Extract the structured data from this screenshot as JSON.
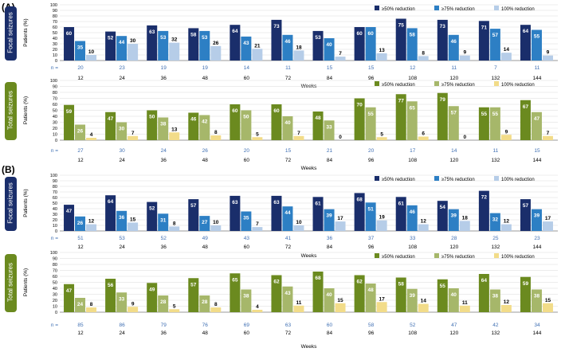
{
  "figure": {
    "panel_labels": [
      "(A)",
      "(B)"
    ],
    "y_axis_label": "Patients (%)",
    "x_axis_label": "Weeks",
    "n_prefix": "n ="
  },
  "colors": {
    "focal": [
      "#1a2e6b",
      "#2d7fc4",
      "#b6cde8"
    ],
    "total": [
      "#6b8a1f",
      "#a6b76a",
      "#f2dc89"
    ],
    "focal_label_bg": "#1a2e6b",
    "total_label_bg": "#6b8a1f",
    "n_text": "#3f6fb3",
    "grid": "#d9d9d9"
  },
  "chart_data": [
    {
      "type": "bar",
      "panel": "(A)",
      "title": "Focal seizures",
      "ylabel": "Patients (%)",
      "xlabel": "Weeks",
      "ylim": [
        0,
        100
      ],
      "yticks": [
        0,
        10,
        20,
        30,
        40,
        50,
        60,
        70,
        80,
        90,
        100
      ],
      "grid": true,
      "legend": "top-right",
      "categories": [
        "12",
        "24",
        "36",
        "48",
        "60",
        "72",
        "84",
        "96",
        "108",
        "120",
        "132",
        "144"
      ],
      "n": [
        "20",
        "23",
        "19",
        "19",
        "14",
        "11",
        "15",
        "15",
        "12",
        "11",
        "7",
        "11"
      ],
      "series": [
        {
          "name": "≥50% reduction",
          "values": [
            60,
            52,
            63,
            58,
            64,
            73,
            53,
            60,
            75,
            73,
            71,
            64
          ]
        },
        {
          "name": "≥75% reduction",
          "values": [
            35,
            44,
            53,
            53,
            43,
            46,
            40,
            60,
            58,
            46,
            57,
            55
          ]
        },
        {
          "name": "100% reduction",
          "values": [
            10,
            30,
            32,
            26,
            21,
            18,
            7,
            13,
            8,
            9,
            14,
            9
          ]
        }
      ]
    },
    {
      "type": "bar",
      "panel": "(A)",
      "title": "Total seizures",
      "ylabel": "Patients (%)",
      "xlabel": "Weeks",
      "ylim": [
        0,
        100
      ],
      "yticks": [
        0,
        10,
        20,
        30,
        40,
        50,
        60,
        70,
        80,
        90,
        100
      ],
      "grid": true,
      "legend": "top-right",
      "categories": [
        "12",
        "24",
        "36",
        "48",
        "60",
        "72",
        "84",
        "96",
        "108",
        "120",
        "132",
        "144"
      ],
      "n": [
        "27",
        "30",
        "24",
        "26",
        "20",
        "15",
        "21",
        "20",
        "17",
        "14",
        "11",
        "15"
      ],
      "series": [
        {
          "name": "≥50% reduction",
          "values": [
            59,
            47,
            50,
            46,
            60,
            60,
            48,
            70,
            77,
            79,
            55,
            67
          ]
        },
        {
          "name": "≥75% reduction",
          "values": [
            26,
            30,
            38,
            42,
            50,
            40,
            33,
            55,
            65,
            57,
            55,
            47
          ]
        },
        {
          "name": "100% reduction",
          "values": [
            4,
            7,
            13,
            8,
            5,
            7,
            0,
            5,
            6,
            0,
            9,
            7
          ]
        }
      ]
    },
    {
      "type": "bar",
      "panel": "(B)",
      "title": "Focal seizures",
      "ylabel": "Patients (%)",
      "xlabel": "Weeks",
      "ylim": [
        0,
        100
      ],
      "yticks": [
        0,
        10,
        20,
        30,
        40,
        50,
        60,
        70,
        80,
        90,
        100
      ],
      "grid": true,
      "legend": "top-right",
      "categories": [
        "12",
        "24",
        "36",
        "48",
        "60",
        "72",
        "84",
        "96",
        "108",
        "120",
        "132",
        "144"
      ],
      "n": [
        "51",
        "53",
        "52",
        "49",
        "43",
        "41",
        "36",
        "37",
        "33",
        "28",
        "25",
        "23"
      ],
      "series": [
        {
          "name": "≥50% reduction",
          "values": [
            47,
            64,
            52,
            57,
            63,
            63,
            61,
            68,
            61,
            54,
            72,
            57
          ]
        },
        {
          "name": "≥75% reduction",
          "values": [
            26,
            36,
            31,
            27,
            35,
            44,
            39,
            51,
            46,
            39,
            32,
            39
          ]
        },
        {
          "name": "100% reduction",
          "values": [
            12,
            15,
            8,
            10,
            7,
            10,
            17,
            19,
            12,
            18,
            12,
            17
          ]
        }
      ]
    },
    {
      "type": "bar",
      "panel": "(B)",
      "title": "Total seizures",
      "ylabel": "Patients (%)",
      "xlabel": "Weeks",
      "ylim": [
        0,
        100
      ],
      "yticks": [
        0,
        10,
        20,
        30,
        40,
        50,
        60,
        70,
        80,
        90,
        100
      ],
      "grid": true,
      "legend": "top-right",
      "categories": [
        "12",
        "24",
        "36",
        "48",
        "60",
        "72",
        "84",
        "96",
        "108",
        "120",
        "132",
        "144"
      ],
      "n": [
        "85",
        "86",
        "79",
        "76",
        "69",
        "63",
        "60",
        "58",
        "52",
        "47",
        "42",
        "34"
      ],
      "series": [
        {
          "name": "≥50% reduction",
          "values": [
            47,
            56,
            49,
            57,
            65,
            62,
            68,
            62,
            58,
            55,
            64,
            59
          ]
        },
        {
          "name": "≥75% reduction",
          "values": [
            24,
            33,
            28,
            28,
            38,
            43,
            40,
            48,
            39,
            40,
            38,
            38
          ]
        },
        {
          "name": "100% reduction",
          "values": [
            8,
            9,
            5,
            8,
            4,
            11,
            15,
            17,
            14,
            11,
            12,
            15
          ]
        }
      ]
    }
  ]
}
